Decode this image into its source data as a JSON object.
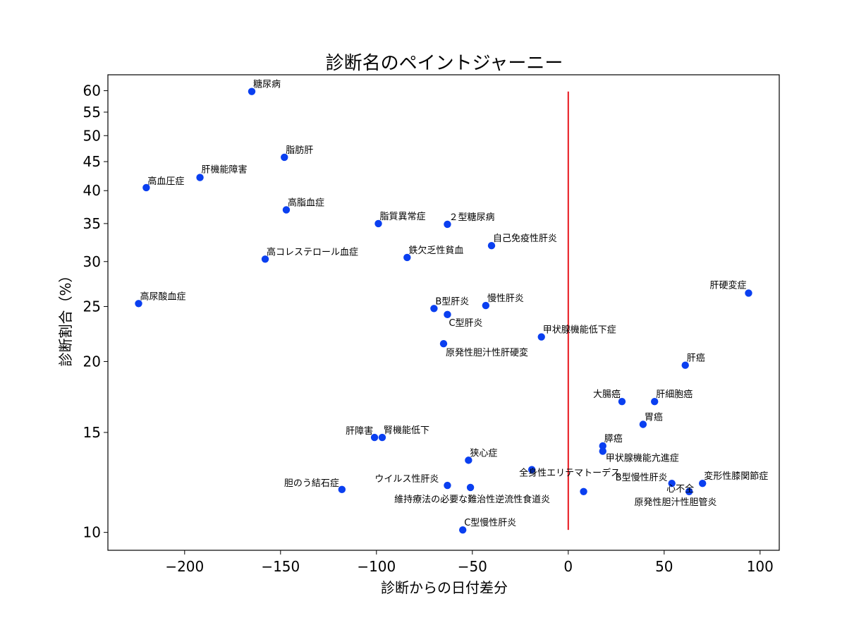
{
  "chart_data": {
    "type": "scatter",
    "title": "診断名のペイントジャーニー",
    "xlabel": "診断からの日付差分",
    "ylabel": "診断割合（%）",
    "x_scale": "linear",
    "y_scale": "log",
    "xlim": [
      -240,
      110
    ],
    "ylim": [
      9.3,
      64
    ],
    "xticks": [
      -200,
      -150,
      -100,
      -50,
      0,
      50,
      100
    ],
    "xtick_labels": [
      "−200",
      "−150",
      "−100",
      "−50",
      "0",
      "50",
      "100"
    ],
    "yticks": [
      10,
      15,
      20,
      25,
      30,
      35,
      40,
      45,
      50,
      55,
      60
    ],
    "ytick_labels": [
      "10",
      "15",
      "20",
      "25",
      "30",
      "35",
      "40",
      "45",
      "50",
      "55",
      "60"
    ],
    "grid": false,
    "marker_color": "#0a3ff0",
    "reference_line": {
      "x": 0,
      "y_range": [
        10.1,
        59.8
      ],
      "color": "#e8141c"
    },
    "points": [
      {
        "label": "糖尿病",
        "x": -165,
        "y": 59.8
      },
      {
        "label": "脂肪肝",
        "x": -148,
        "y": 45.8
      },
      {
        "label": "肝機能障害",
        "x": -192,
        "y": 42.2
      },
      {
        "label": "高血圧症",
        "x": -220,
        "y": 40.5
      },
      {
        "label": "高脂血症",
        "x": -147,
        "y": 37.0
      },
      {
        "label": "脂質異常症",
        "x": -99,
        "y": 35.0
      },
      {
        "label": "２型糖尿病",
        "x": -63,
        "y": 34.9
      },
      {
        "label": "自己免疫性肝炎",
        "x": -40,
        "y": 32.0
      },
      {
        "label": "高コレステロール血症",
        "x": -158,
        "y": 30.3
      },
      {
        "label": "鉄欠乏性貧血",
        "x": -84,
        "y": 30.5
      },
      {
        "label": "肝硬変症",
        "x": 94,
        "y": 26.4
      },
      {
        "label": "高尿酸血症",
        "x": -224,
        "y": 25.3
      },
      {
        "label": "B型肝炎",
        "x": -70,
        "y": 24.8
      },
      {
        "label": "慢性肝炎",
        "x": -43,
        "y": 25.1
      },
      {
        "label": "C型肝炎",
        "x": -63,
        "y": 24.2
      },
      {
        "label": "甲状腺機能低下症",
        "x": -14,
        "y": 22.1
      },
      {
        "label": "原発性胆汁性肝硬変",
        "x": -65,
        "y": 21.5
      },
      {
        "label": "肝癌",
        "x": 61,
        "y": 19.7
      },
      {
        "label": "大腸癌",
        "x": 28,
        "y": 17.0
      },
      {
        "label": "肝細胞癌",
        "x": 45,
        "y": 17.0
      },
      {
        "label": "胃癌",
        "x": 39,
        "y": 15.5
      },
      {
        "label": "肝障害",
        "x": -101,
        "y": 14.7
      },
      {
        "label": "腎機能低下",
        "x": -97,
        "y": 14.7
      },
      {
        "label": "膵癌",
        "x": 18,
        "y": 14.2
      },
      {
        "label": "甲状腺機能亢進症",
        "x": 18,
        "y": 13.9
      },
      {
        "label": "狭心症",
        "x": -52,
        "y": 13.4
      },
      {
        "label": "全身性エリテマトーデス",
        "x": -19,
        "y": 12.9
      },
      {
        "label": "B型慢性肝炎",
        "x": 54,
        "y": 12.2
      },
      {
        "label": "変形性膝関節症",
        "x": 70,
        "y": 12.2
      },
      {
        "label": "ウイルス性肝炎",
        "x": -63,
        "y": 12.1
      },
      {
        "label": "維持療法の必要な難治性逆流性食道炎",
        "x": -51,
        "y": 12.0
      },
      {
        "label": "心不全",
        "x": 63,
        "y": 11.8
      },
      {
        "label": "原発性胆汁性胆管炎",
        "x": 8,
        "y": 11.8
      },
      {
        "label": "胆のう結石症",
        "x": -118,
        "y": 11.9
      },
      {
        "label": "C型慢性肝炎",
        "x": -55,
        "y": 10.1
      }
    ]
  }
}
